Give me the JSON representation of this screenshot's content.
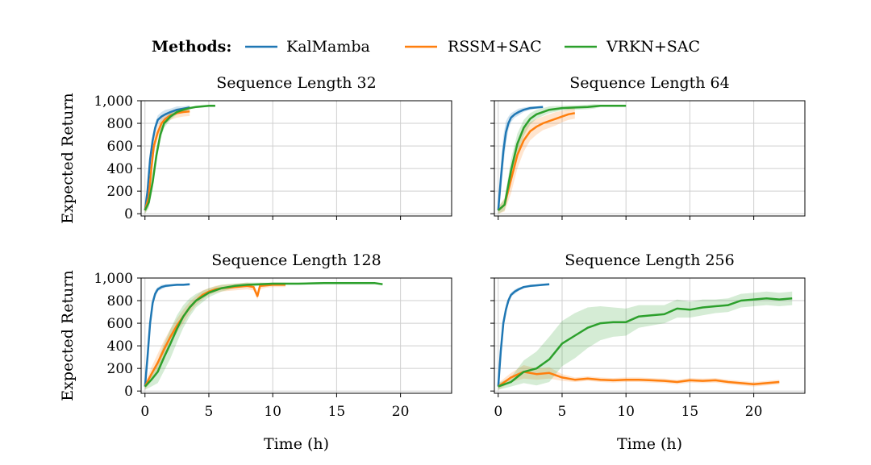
{
  "legend": {
    "title": "Methods:",
    "entries": [
      {
        "label": "KalMamba",
        "color": "#1f77b4"
      },
      {
        "label": "RSSM+SAC",
        "color": "#ff7f0e"
      },
      {
        "label": "VRKN+SAC",
        "color": "#2ca02c"
      }
    ]
  },
  "chart_data": [
    {
      "type": "line",
      "title": "Sequence Length 32",
      "xlabel": "",
      "ylabel": "Expected Return",
      "xlim": [
        -0.3,
        24
      ],
      "ylim": [
        -20,
        1000
      ],
      "xticks": [
        0,
        5,
        10,
        15,
        20
      ],
      "yticks": [
        0,
        200,
        400,
        600,
        800,
        1000
      ],
      "ytick_labels": [
        "0",
        "200",
        "400",
        "600",
        "800",
        "1,000"
      ],
      "series": [
        {
          "name": "KalMamba",
          "x": [
            0,
            0.2,
            0.4,
            0.6,
            0.8,
            1.0,
            1.3,
            1.6,
            2.0,
            2.5,
            3.0,
            3.5
          ],
          "y": [
            30,
            200,
            480,
            650,
            760,
            830,
            860,
            880,
            900,
            920,
            930,
            940
          ],
          "band": [
            30,
            60,
            60,
            50,
            40,
            40,
            40,
            40,
            30,
            30,
            20,
            20
          ]
        },
        {
          "name": "RSSM+SAC",
          "x": [
            0,
            0.3,
            0.5,
            0.7,
            1.0,
            1.3,
            1.6,
            2.0,
            2.5,
            3.0,
            3.5
          ],
          "y": [
            30,
            150,
            400,
            600,
            720,
            800,
            840,
            870,
            890,
            900,
            905
          ],
          "band": [
            30,
            80,
            80,
            70,
            60,
            50,
            40,
            40,
            40,
            40,
            40
          ]
        },
        {
          "name": "VRKN+SAC",
          "x": [
            0,
            0.3,
            0.6,
            0.9,
            1.2,
            1.5,
            2.0,
            2.5,
            3.0,
            3.5,
            4.0,
            4.5,
            5.0,
            5.5
          ],
          "y": [
            30,
            100,
            280,
            520,
            700,
            800,
            860,
            900,
            920,
            935,
            945,
            950,
            955,
            955
          ],
          "band": [
            30,
            50,
            60,
            60,
            50,
            40,
            30,
            20,
            20,
            10,
            10,
            10,
            10,
            10
          ]
        }
      ]
    },
    {
      "type": "line",
      "title": "Sequence Length 64",
      "xlabel": "",
      "ylabel": "",
      "xlim": [
        -0.3,
        24
      ],
      "ylim": [
        -20,
        1000
      ],
      "xticks": [
        0,
        5,
        10,
        15,
        20
      ],
      "yticks": [
        0,
        200,
        400,
        600,
        800,
        1000
      ],
      "series": [
        {
          "name": "KalMamba",
          "x": [
            0,
            0.2,
            0.4,
            0.6,
            0.8,
            1.0,
            1.3,
            1.6,
            2.0,
            2.5,
            3.0,
            3.5
          ],
          "y": [
            30,
            300,
            550,
            720,
            800,
            850,
            880,
            900,
            920,
            935,
            940,
            945
          ],
          "band": [
            30,
            120,
            140,
            100,
            60,
            40,
            30,
            30,
            20,
            15,
            10,
            10
          ]
        },
        {
          "name": "RSSM+SAC",
          "x": [
            0,
            0.5,
            1.0,
            1.5,
            2.0,
            2.5,
            3.0,
            3.5,
            4.0,
            4.5,
            5.0,
            5.5,
            6.0
          ],
          "y": [
            30,
            80,
            300,
            520,
            650,
            730,
            770,
            800,
            820,
            840,
            860,
            880,
            890
          ],
          "band": [
            30,
            60,
            120,
            120,
            100,
            80,
            70,
            60,
            60,
            60,
            50,
            50,
            50
          ]
        },
        {
          "name": "VRKN+SAC",
          "x": [
            0,
            0.5,
            1.0,
            1.5,
            2.0,
            2.5,
            3.0,
            4.0,
            5.0,
            6.0,
            7.0,
            7.5,
            8.0,
            9.0,
            10.0
          ],
          "y": [
            30,
            80,
            380,
            620,
            760,
            840,
            880,
            920,
            935,
            940,
            945,
            950,
            955,
            955,
            955
          ],
          "band": [
            30,
            50,
            100,
            90,
            70,
            50,
            40,
            30,
            20,
            20,
            20,
            20,
            10,
            10,
            10
          ]
        }
      ]
    },
    {
      "type": "line",
      "title": "Sequence Length 128",
      "xlabel": "Time (h)",
      "ylabel": "Expected Return",
      "xlim": [
        -0.3,
        24
      ],
      "ylim": [
        -20,
        1000
      ],
      "xticks": [
        0,
        5,
        10,
        15,
        20
      ],
      "yticks": [
        0,
        200,
        400,
        600,
        800,
        1000
      ],
      "ytick_labels": [
        "0",
        "200",
        "400",
        "600",
        "800",
        "1,000"
      ],
      "series": [
        {
          "name": "KalMamba",
          "x": [
            0,
            0.2,
            0.4,
            0.6,
            0.8,
            1.0,
            1.3,
            1.6,
            2.0,
            2.5,
            3.0,
            3.5
          ],
          "y": [
            40,
            300,
            600,
            780,
            860,
            900,
            920,
            930,
            935,
            940,
            940,
            945
          ],
          "band": [
            30,
            60,
            60,
            40,
            30,
            20,
            20,
            15,
            10,
            10,
            10,
            10
          ]
        },
        {
          "name": "RSSM+SAC",
          "x": [
            0,
            0.5,
            1.0,
            1.5,
            2.0,
            2.5,
            3.0,
            3.5,
            4.0,
            4.5,
            5.0,
            5.5,
            6.0,
            7.0,
            8.0,
            8.5,
            8.8,
            9.0,
            9.5,
            10.0,
            11.0
          ],
          "y": [
            40,
            150,
            250,
            370,
            480,
            580,
            660,
            740,
            800,
            850,
            880,
            900,
            910,
            920,
            930,
            920,
            840,
            930,
            935,
            940,
            940
          ],
          "band": [
            30,
            60,
            80,
            80,
            70,
            60,
            60,
            50,
            40,
            40,
            30,
            30,
            30,
            30,
            30,
            30,
            30,
            30,
            20,
            20,
            20
          ]
        },
        {
          "name": "VRKN+SAC",
          "x": [
            0,
            0.5,
            1.0,
            1.5,
            2.0,
            2.5,
            3.0,
            3.5,
            4.0,
            5.0,
            6.0,
            7.0,
            8.0,
            9.0,
            10.0,
            12.0,
            14.0,
            16.0,
            18.0,
            18.6
          ],
          "y": [
            40,
            100,
            170,
            300,
            420,
            550,
            660,
            740,
            800,
            870,
            910,
            930,
            940,
            945,
            950,
            950,
            955,
            955,
            955,
            945
          ],
          "band": [
            30,
            60,
            100,
            120,
            130,
            120,
            100,
            80,
            60,
            40,
            30,
            20,
            20,
            15,
            10,
            10,
            10,
            10,
            10,
            10
          ]
        }
      ]
    },
    {
      "type": "line",
      "title": "Sequence Length 256",
      "xlabel": "Time (h)",
      "ylabel": "",
      "xlim": [
        -0.3,
        24
      ],
      "ylim": [
        -20,
        1000
      ],
      "xticks": [
        0,
        5,
        10,
        15,
        20
      ],
      "yticks": [
        0,
        200,
        400,
        600,
        800,
        1000
      ],
      "series": [
        {
          "name": "KalMamba",
          "x": [
            0,
            0.2,
            0.4,
            0.6,
            0.8,
            1.0,
            1.3,
            1.6,
            2.0,
            2.5,
            3.0,
            3.5,
            4.0
          ],
          "y": [
            40,
            350,
            600,
            720,
            800,
            850,
            880,
            900,
            920,
            930,
            935,
            940,
            945
          ],
          "band": [
            30,
            50,
            50,
            40,
            30,
            20,
            20,
            15,
            10,
            10,
            10,
            10,
            10
          ]
        },
        {
          "name": "RSSM+SAC",
          "x": [
            0,
            1,
            2,
            3,
            4,
            5,
            6,
            7,
            8,
            9,
            10,
            11,
            12,
            13,
            14,
            15,
            16,
            17,
            18,
            19,
            20,
            21,
            22
          ],
          "y": [
            40,
            120,
            170,
            150,
            160,
            120,
            100,
            110,
            100,
            95,
            100,
            100,
            95,
            90,
            80,
            95,
            90,
            95,
            80,
            70,
            60,
            70,
            80
          ],
          "band": [
            30,
            40,
            60,
            50,
            50,
            30,
            20,
            20,
            20,
            20,
            20,
            20,
            20,
            20,
            20,
            20,
            20,
            20,
            20,
            20,
            20,
            20,
            20
          ]
        },
        {
          "name": "VRKN+SAC",
          "x": [
            0,
            1,
            2,
            3,
            4,
            5,
            6,
            7,
            8,
            9,
            10,
            11,
            12,
            13,
            14,
            15,
            16,
            17,
            18,
            19,
            20,
            21,
            22,
            23
          ],
          "y": [
            40,
            80,
            170,
            200,
            280,
            420,
            490,
            560,
            600,
            610,
            610,
            660,
            670,
            680,
            730,
            720,
            740,
            750,
            760,
            800,
            810,
            820,
            810,
            820
          ],
          "band": [
            30,
            40,
            100,
            150,
            200,
            200,
            200,
            180,
            150,
            130,
            120,
            100,
            90,
            80,
            80,
            70,
            70,
            60,
            60,
            60,
            60,
            60,
            60,
            60
          ]
        }
      ]
    }
  ]
}
